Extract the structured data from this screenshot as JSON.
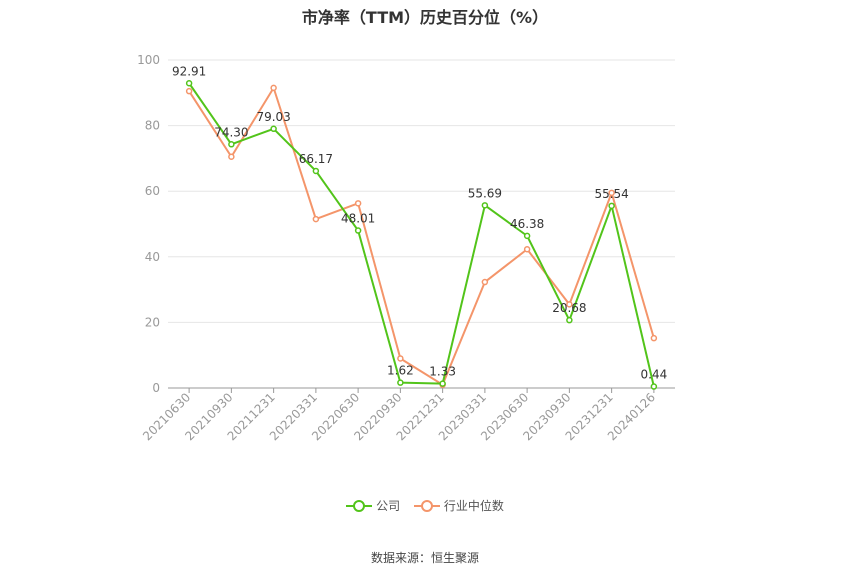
{
  "chart_data": {
    "type": "line",
    "title": "市净率（TTM）历史百分位（%）",
    "categories": [
      "20210630",
      "20210930",
      "20211231",
      "20220331",
      "20220630",
      "20220930",
      "20221231",
      "20230331",
      "20230630",
      "20230930",
      "20231231",
      "20240126"
    ],
    "ylim": [
      0,
      100
    ],
    "yticks": [
      0,
      20,
      40,
      60,
      80,
      100
    ],
    "grid": true,
    "legend_position": "bottom",
    "series": [
      {
        "name": "公司",
        "color": "#52c41a",
        "values": [
          92.91,
          74.3,
          79.03,
          66.17,
          48.01,
          1.62,
          1.33,
          55.69,
          46.38,
          20.68,
          55.54,
          0.44
        ],
        "labels": [
          "92.91",
          "74.30",
          "79.03",
          "66.17",
          "48.01",
          "1.62",
          "1.33",
          "55.69",
          "46.38",
          "20.68",
          "55.54",
          "0.44"
        ]
      },
      {
        "name": "行业中位数",
        "color": "#f4956a",
        "values": [
          90.5,
          70.5,
          91.5,
          51.5,
          56.3,
          9.0,
          1.0,
          32.3,
          42.3,
          25.5,
          59.5,
          15.2
        ]
      }
    ],
    "source": "数据来源：恒生聚源"
  }
}
